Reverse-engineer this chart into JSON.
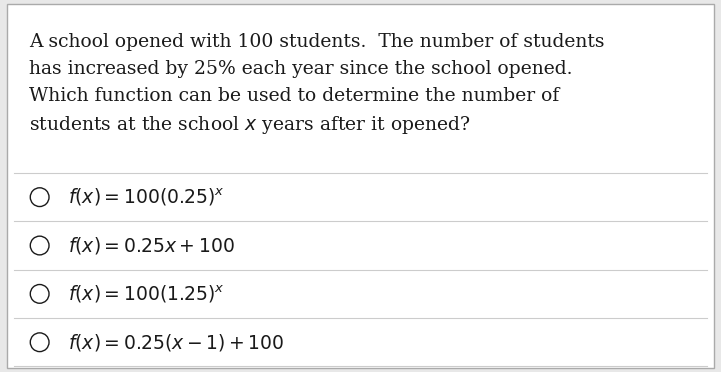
{
  "background_color": "#e8e8e8",
  "box_color": "#ffffff",
  "box_border_color": "#aaaaaa",
  "text_color": "#1a1a1a",
  "divider_color": "#cccccc",
  "font_size_para": 13.5,
  "font_size_options": 13.5,
  "para_lines": [
    "A school opened with 100 students.  The number of students",
    "has increased by 25% each year since the school opened.",
    "Which function can be used to determine the number of",
    "students at the school $x$ years after it opened?"
  ],
  "option_texts": [
    "$f(x) = 100(0.25)^{x}$",
    "$f(x) = 0.25x + 100$",
    "$f(x) = 100(1.25)^{x}$",
    "$f(x) = 0.25(x - 1) + 100$"
  ]
}
